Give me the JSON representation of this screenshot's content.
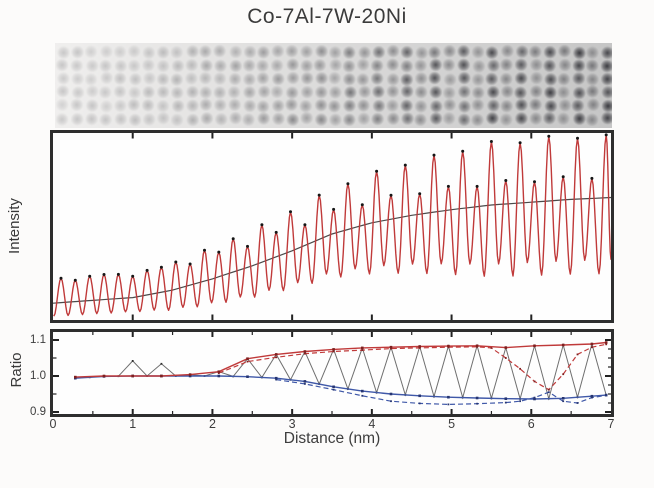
{
  "figure": {
    "title": "Co-7Al-7W-20Ni",
    "xlabel": "Distance (nm)",
    "intensity_ylabel": "Intensity",
    "ratio_ylabel": "Ratio",
    "x_tick_labels": [
      "0",
      "1",
      "2",
      "3",
      "4",
      "5",
      "6",
      "7"
    ],
    "ratio_ytick_labels": [
      "1.1",
      "1.0",
      "0.9"
    ]
  },
  "colors": {
    "red": "#c03a3a",
    "red_marker": "#7f2020",
    "blue": "#3f58a8",
    "blue_marker": "#263572",
    "zigzag": "#6f6f6f",
    "zigzag_marker": "#2c2c2c",
    "trend": "#4a4a4a",
    "peak_dot": "#161616",
    "tick": "#222222"
  },
  "micrograph": {
    "kind": "HAADF-STEM lattice image strip",
    "rows": 6,
    "columns": 39,
    "column_period_nm": 0.18,
    "first_column_nm": 0.1,
    "bg_left": "#f0efee",
    "bg_right": "#c6c6c6",
    "dot_color_rgb": "28,28,34"
  },
  "chart_data": [
    {
      "type": "line",
      "title": "HAADF intensity line profile",
      "xlabel": "Distance (nm)",
      "ylabel": "Intensity",
      "x_range": [
        0,
        7
      ],
      "grid": false,
      "description": "Atomic-column intensity oscillation (period ~0.18 nm, 39 peaks, black dots at peaks with red profile); mean level and peak amplitude rise from left to right; smooth dark line is the local-average trend. Values below are normalized panel-height fractions.",
      "period_nm": 0.18,
      "first_peak_nm": 0.1,
      "n_peaks": 39,
      "trend_points": [
        [
          0,
          0.09
        ],
        [
          1,
          0.12
        ],
        [
          1.5,
          0.16
        ],
        [
          2,
          0.22
        ],
        [
          2.5,
          0.29
        ],
        [
          3,
          0.37
        ],
        [
          3.5,
          0.46
        ],
        [
          4,
          0.52
        ],
        [
          4.5,
          0.56
        ],
        [
          5,
          0.59
        ],
        [
          5.5,
          0.615
        ],
        [
          6,
          0.63
        ],
        [
          6.5,
          0.645
        ],
        [
          7,
          0.655
        ]
      ],
      "tall_peak_amp": [
        [
          0,
          0.13
        ],
        [
          1.2,
          0.13
        ],
        [
          3.5,
          0.24
        ],
        [
          5.5,
          0.33
        ],
        [
          7,
          0.34
        ]
      ],
      "short_peak_amp": [
        [
          0,
          0.125
        ],
        [
          7,
          0.115
        ]
      ],
      "valley_depth": [
        [
          0,
          0.07
        ],
        [
          1,
          0.075
        ],
        [
          3.5,
          0.22
        ],
        [
          5.5,
          0.35
        ],
        [
          7,
          0.37
        ]
      ],
      "x_ticks": [
        0,
        1,
        2,
        3,
        4,
        5,
        6,
        7
      ]
    },
    {
      "type": "line",
      "title": "Plane-by-plane intensity ratio",
      "xlabel": "Distance (nm)",
      "ylabel": "Ratio",
      "x_range": [
        0,
        7
      ],
      "y_range": [
        0.9,
        1.1
      ],
      "y_ticks": [
        0.9,
        1.0,
        1.1
      ],
      "x_ticks": [
        0,
        1,
        2,
        3,
        4,
        5,
        6,
        7
      ],
      "grid": false,
      "legend": "none",
      "series": [
        {
          "name": "ratio-upper-solid",
          "color": "red",
          "style": "solid",
          "points": [
            [
              0.28,
              0.997
            ],
            [
              0.64,
              1.0
            ],
            [
              1.0,
              1.0
            ],
            [
              1.36,
              1.0
            ],
            [
              1.72,
              1.004
            ],
            [
              2.08,
              1.012
            ],
            [
              2.44,
              1.048
            ],
            [
              2.8,
              1.06
            ],
            [
              3.16,
              1.068
            ],
            [
              3.52,
              1.074
            ],
            [
              3.88,
              1.078
            ],
            [
              4.24,
              1.08
            ],
            [
              4.6,
              1.082
            ],
            [
              4.96,
              1.083
            ],
            [
              5.32,
              1.084
            ],
            [
              5.68,
              1.079
            ],
            [
              6.04,
              1.084
            ],
            [
              6.4,
              1.086
            ],
            [
              6.76,
              1.089
            ],
            [
              6.94,
              1.093
            ]
          ]
        },
        {
          "name": "ratio-lower-solid",
          "color": "blue",
          "style": "solid",
          "points": [
            [
              0.28,
              0.994
            ],
            [
              0.64,
              0.999
            ],
            [
              1.0,
              1.0
            ],
            [
              1.36,
              1.0
            ],
            [
              1.72,
              1.0
            ],
            [
              2.08,
              1.0
            ],
            [
              2.44,
              0.998
            ],
            [
              2.8,
              0.994
            ],
            [
              3.16,
              0.985
            ],
            [
              3.52,
              0.97
            ],
            [
              3.88,
              0.958
            ],
            [
              4.24,
              0.95
            ],
            [
              4.6,
              0.945
            ],
            [
              4.96,
              0.941
            ],
            [
              5.32,
              0.939
            ],
            [
              5.68,
              0.937
            ],
            [
              6.04,
              0.936
            ],
            [
              6.4,
              0.938
            ],
            [
              6.76,
              0.944
            ],
            [
              6.94,
              0.947
            ]
          ]
        },
        {
          "name": "ratio-upper-dashed",
          "color": "red",
          "style": "dashed",
          "points": [
            [
              2.08,
              1.008
            ],
            [
              2.44,
              1.04
            ],
            [
              2.8,
              1.052
            ],
            [
              3.16,
              1.062
            ],
            [
              3.52,
              1.068
            ],
            [
              3.88,
              1.072
            ],
            [
              4.24,
              1.076
            ],
            [
              4.6,
              1.078
            ],
            [
              4.96,
              1.08
            ],
            [
              5.32,
              1.081
            ],
            [
              5.5,
              1.078
            ],
            [
              5.68,
              1.05
            ],
            [
              5.86,
              1.02
            ],
            [
              6.04,
              0.985
            ],
            [
              6.22,
              0.962
            ],
            [
              6.4,
              1.005
            ],
            [
              6.58,
              1.06
            ],
            [
              6.76,
              1.08
            ],
            [
              6.94,
              1.088
            ]
          ]
        },
        {
          "name": "ratio-lower-dashed",
          "color": "blue",
          "style": "dashed",
          "points": [
            [
              2.8,
              0.99
            ],
            [
              3.16,
              0.978
            ],
            [
              3.52,
              0.962
            ],
            [
              3.88,
              0.945
            ],
            [
              4.24,
              0.93
            ],
            [
              4.6,
              0.924
            ],
            [
              4.96,
              0.921
            ],
            [
              5.32,
              0.923
            ],
            [
              5.68,
              0.926
            ],
            [
              5.86,
              0.93
            ],
            [
              6.04,
              0.94
            ],
            [
              6.22,
              0.955
            ],
            [
              6.4,
              0.93
            ],
            [
              6.58,
              0.925
            ],
            [
              6.76,
              0.94
            ],
            [
              6.94,
              0.946
            ]
          ]
        },
        {
          "name": "plane-by-plane-zigzag",
          "color": "gray",
          "style": "thin-solid",
          "generated": true,
          "first_x": 0.28,
          "period_nm": 0.18,
          "n": 38,
          "alternates_between": [
            "ratio-upper-solid",
            "ratio-lower-solid"
          ],
          "overrides": {
            "4": 1.042,
            "6": 1.034
          }
        }
      ]
    }
  ]
}
